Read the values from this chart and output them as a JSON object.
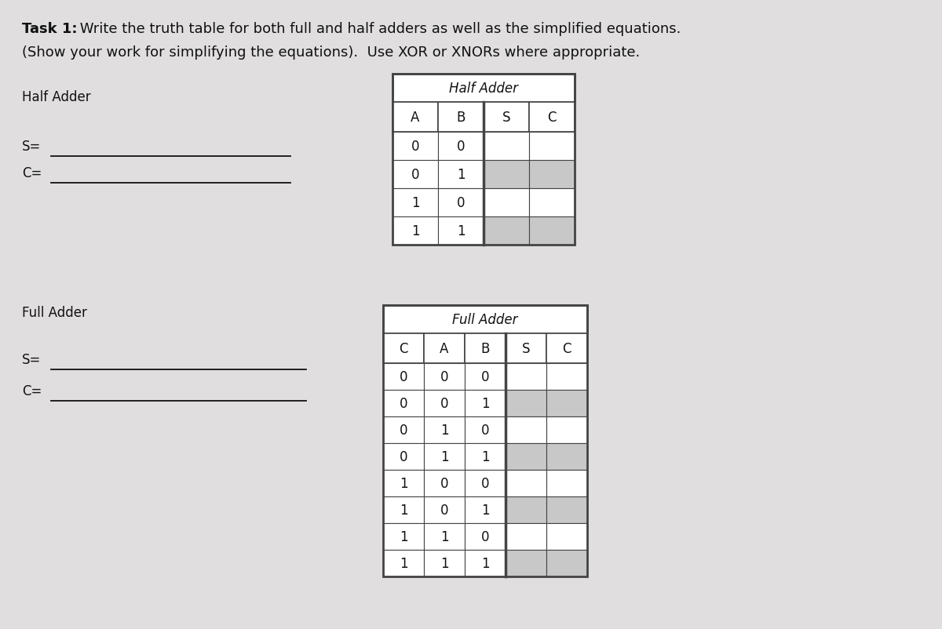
{
  "paper_color": "#e0dede",
  "title_bold": "Task 1:",
  "title_normal": " Write the truth table for both full and half adders as well as the simplified equations.",
  "title_line2": "(Show your work for simplifying the equations).  Use XOR or XNORs where appropriate.",
  "half_adder_label": "Half Adder",
  "full_adder_label": "Full Adder",
  "s_eq_label": "S=",
  "c_eq_label": "C=",
  "half_adder_title": "Half Adder",
  "full_adder_title": "Full Adder",
  "half_adder_cols": [
    "A",
    "B",
    "S",
    "C"
  ],
  "full_adder_cols": [
    "C",
    "A",
    "B",
    "S",
    "C"
  ],
  "half_adder_rows": [
    [
      "0",
      "0",
      "",
      ""
    ],
    [
      "0",
      "1",
      "",
      ""
    ],
    [
      "1",
      "0",
      "",
      ""
    ],
    [
      "1",
      "1",
      "",
      ""
    ]
  ],
  "full_adder_rows": [
    [
      "0",
      "0",
      "0",
      "",
      ""
    ],
    [
      "0",
      "0",
      "1",
      "",
      ""
    ],
    [
      "0",
      "1",
      "0",
      "",
      ""
    ],
    [
      "0",
      "1",
      "1",
      "",
      ""
    ],
    [
      "1",
      "0",
      "0",
      "",
      ""
    ],
    [
      "1",
      "0",
      "1",
      "",
      ""
    ],
    [
      "1",
      "1",
      "0",
      "",
      ""
    ],
    [
      "1",
      "1",
      "1",
      "",
      ""
    ]
  ],
  "table_border_color": "#444444",
  "cell_gray": "#c8c8c8",
  "cell_white": "#ffffff",
  "text_color": "#111111",
  "font_size_title": 13,
  "font_size_body": 12,
  "font_size_table": 12,
  "font_size_table_title": 12
}
